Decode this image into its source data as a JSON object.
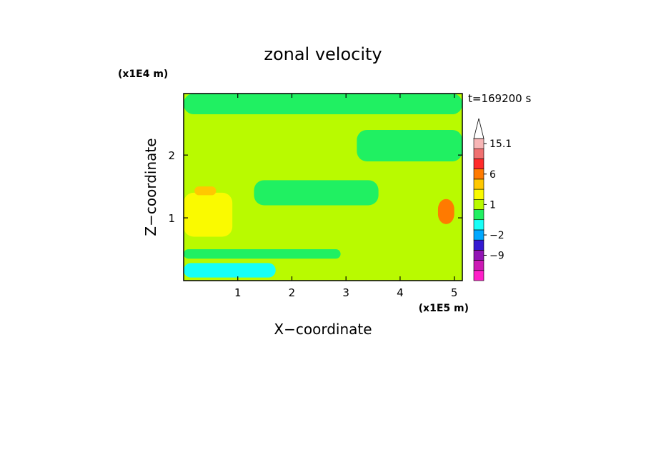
{
  "chart_data": {
    "type": "heatmap",
    "title": "zonal velocity",
    "xlabel": "X−coordinate",
    "ylabel": "Z−coordinate",
    "x_unit": "(x1E5 m)",
    "y_unit": "(x1E4 m)",
    "time_label": "t=169200 s",
    "xlim": [
      0,
      5.15
    ],
    "ylim": [
      0,
      2.98
    ],
    "x_ticks": [
      1,
      2,
      3,
      4,
      5
    ],
    "x_tick_labels": [
      "1",
      "2",
      "3",
      "4",
      "5"
    ],
    "y_ticks": [
      1,
      2
    ],
    "y_tick_labels": [
      "1",
      "2"
    ],
    "colorbar": {
      "levels": [
        -15,
        -12,
        -9,
        -6,
        -2,
        -1,
        0,
        1,
        2,
        3,
        6,
        9,
        12,
        15.1
      ],
      "colors": [
        "#ff1fc8",
        "#cc19b4",
        "#9214b4",
        "#3419d2",
        "#00a8ff",
        "#17fff7",
        "#20f062",
        "#b9fa00",
        "#fafa00",
        "#ffc800",
        "#ff7a00",
        "#ff2a2a",
        "#f07070",
        "#f7b5b5"
      ],
      "labels": [
        {
          "level": 15.1,
          "text": "15.1"
        },
        {
          "level": 6,
          "text": "6"
        },
        {
          "level": 1,
          "text": "1"
        },
        {
          "level": -2,
          "text": "−2"
        },
        {
          "level": -9,
          "text": "−9"
        }
      ]
    },
    "field": {
      "background_level": 1,
      "regions": [
        {
          "level": 0,
          "x": [
            0.0,
            5.15
          ],
          "z": [
            2.65,
            2.98
          ]
        },
        {
          "level": 0,
          "x": [
            3.2,
            5.15
          ],
          "z": [
            1.9,
            2.4
          ]
        },
        {
          "level": 0,
          "x": [
            1.3,
            3.6
          ],
          "z": [
            1.2,
            1.6
          ]
        },
        {
          "level": 0,
          "x": [
            0.0,
            2.9
          ],
          "z": [
            0.35,
            0.5
          ]
        },
        {
          "level": -1,
          "x": [
            0.0,
            1.7
          ],
          "z": [
            0.05,
            0.28
          ]
        },
        {
          "level": 2,
          "x": [
            0.0,
            0.9
          ],
          "z": [
            0.7,
            1.4
          ]
        },
        {
          "level": 3,
          "x": [
            0.2,
            0.6
          ],
          "z": [
            1.36,
            1.5
          ]
        },
        {
          "level": 6,
          "x": [
            4.7,
            5.0
          ],
          "z": [
            0.9,
            1.3
          ]
        }
      ]
    }
  }
}
